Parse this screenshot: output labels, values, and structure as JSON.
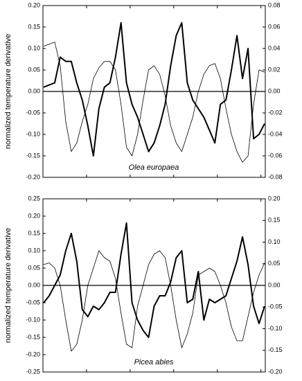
{
  "chart_data": [
    {
      "type": "line",
      "annotation": "Olea europaea",
      "ylabel": "normalized temperature derivative",
      "ylim": [
        -0.2,
        0.2
      ],
      "yticks": [
        {
          "value": -0.2,
          "label": "-0.20"
        },
        {
          "value": -0.15,
          "label": "-0.15"
        },
        {
          "value": -0.1,
          "label": "-0.10"
        },
        {
          "value": -0.05,
          "label": "-0.05"
        },
        {
          "value": 0,
          "label": "0.00"
        },
        {
          "value": 0.05,
          "label": "0.05"
        },
        {
          "value": 0.1,
          "label": "0.10"
        },
        {
          "value": 0.15,
          "label": "0.15"
        },
        {
          "value": 0.2,
          "label": "0.20"
        }
      ],
      "y2lim": [
        -0.08,
        0.08
      ],
      "y2ticks": [
        {
          "value": -0.08,
          "label": "-0.08"
        },
        {
          "value": -0.06,
          "label": "-0.06"
        },
        {
          "value": -0.04,
          "label": "-0.04"
        },
        {
          "value": -0.02,
          "label": "-0.02"
        },
        {
          "value": 0,
          "label": "0.00"
        },
        {
          "value": 0.02,
          "label": "0.02"
        },
        {
          "value": 0.04,
          "label": "0.04"
        },
        {
          "value": 0.06,
          "label": "0.06"
        },
        {
          "value": 0.08,
          "label": "0.08"
        }
      ],
      "zero_line": true,
      "series": [
        {
          "color": "#000000",
          "line_width": 2,
          "values": [
            0.01,
            0.015,
            0.02,
            0.08,
            0.07,
            0.07,
            0.02,
            -0.02,
            -0.08,
            -0.15,
            -0.04,
            0.01,
            0.02,
            0.08,
            0.16,
            0.02,
            -0.03,
            -0.06,
            -0.1,
            -0.14,
            -0.12,
            -0.08,
            -0.03,
            0.06,
            0.13,
            0.16,
            0.02,
            -0.02,
            -0.04,
            -0.06,
            -0.09,
            -0.12,
            -0.03,
            -0.02,
            0.05,
            0.13,
            0.03,
            0.1,
            -0.11,
            -0.1,
            -0.075
          ]
        },
        {
          "color": "#000000",
          "line_width": 0.8,
          "axis": "y2",
          "values": [
            0.042,
            0.044,
            0.046,
            0.024,
            -0.028,
            -0.056,
            -0.048,
            -0.028,
            -0.012,
            0.012,
            0.022,
            0.028,
            0.028,
            0.02,
            -0.012,
            -0.052,
            -0.06,
            -0.04,
            -0.008,
            0.02,
            0.024,
            0.016,
            -0.004,
            -0.032,
            -0.048,
            -0.056,
            -0.04,
            -0.024,
            0,
            0.016,
            0.024,
            0.026,
            0.012,
            -0.016,
            -0.04,
            -0.056,
            -0.066,
            -0.06,
            -0.012,
            0.02,
            0.018
          ]
        }
      ]
    },
    {
      "type": "line",
      "annotation": "Picea abies",
      "ylabel": "normalized temperature derivative",
      "ylim": [
        -0.25,
        0.25
      ],
      "yticks": [
        {
          "value": -0.25,
          "label": "-0.25"
        },
        {
          "value": -0.2,
          "label": "-0.20"
        },
        {
          "value": -0.15,
          "label": "-0.15"
        },
        {
          "value": -0.1,
          "label": "-0.10"
        },
        {
          "value": -0.05,
          "label": "-0.05"
        },
        {
          "value": 0,
          "label": "0.00"
        },
        {
          "value": 0.05,
          "label": "0.05"
        },
        {
          "value": 0.1,
          "label": "0.10"
        },
        {
          "value": 0.15,
          "label": "0.15"
        },
        {
          "value": 0.2,
          "label": "0.20"
        },
        {
          "value": 0.25,
          "label": "0.25"
        }
      ],
      "y2lim": [
        -0.2,
        0.2
      ],
      "y2ticks": [
        {
          "value": -0.2,
          "label": "-0.20"
        },
        {
          "value": -0.15,
          "label": "-0.15"
        },
        {
          "value": -0.1,
          "label": "-0.10"
        },
        {
          "value": -0.05,
          "label": "-0.05"
        },
        {
          "value": 0,
          "label": "0.00"
        },
        {
          "value": 0.05,
          "label": "0.05"
        },
        {
          "value": 0.1,
          "label": "0.10"
        },
        {
          "value": 0.15,
          "label": "0.15"
        },
        {
          "value": 0.2,
          "label": "0.20"
        }
      ],
      "zero_line": true,
      "series": [
        {
          "color": "#000000",
          "line_width": 2,
          "values": [
            -0.05,
            -0.03,
            0,
            0.03,
            0.1,
            0.15,
            0.07,
            -0.07,
            -0.09,
            -0.06,
            -0.07,
            -0.05,
            -0.02,
            -0.02,
            0.09,
            0.18,
            -0.05,
            -0.1,
            -0.13,
            -0.15,
            -0.06,
            -0.03,
            -0.03,
            0.01,
            0.08,
            0.1,
            -0.05,
            -0.04,
            0.04,
            -0.1,
            -0.04,
            -0.05,
            -0.04,
            -0.03,
            0.02,
            0.07,
            0.14,
            0.06,
            -0.06,
            -0.11,
            -0.06
          ]
        },
        {
          "color": "#000000",
          "line_width": 0.8,
          "axis": "y2",
          "values": [
            0.048,
            0.052,
            0.04,
            0,
            -0.08,
            -0.152,
            -0.136,
            -0.08,
            0,
            0.04,
            0.08,
            0.064,
            0.056,
            0.016,
            -0.064,
            -0.136,
            -0.144,
            -0.048,
            0,
            0.048,
            0.072,
            0.08,
            0.064,
            0,
            -0.08,
            -0.144,
            -0.112,
            -0.064,
            0.024,
            0.032,
            0.04,
            0.032,
            0,
            -0.04,
            -0.096,
            -0.128,
            -0.128,
            -0.072,
            -0.016,
            0.024,
            0.052
          ]
        }
      ]
    }
  ]
}
